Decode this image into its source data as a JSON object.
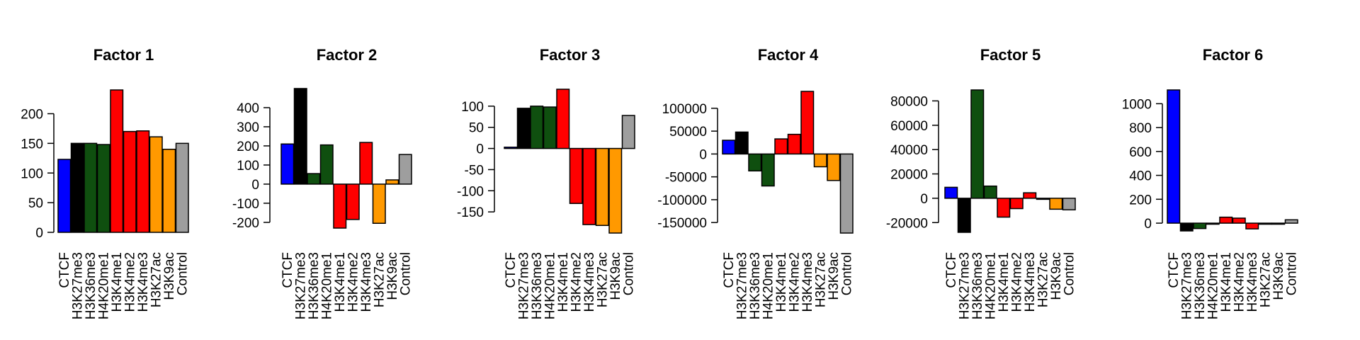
{
  "chart_data": [
    {
      "type": "bar",
      "title": "Factor 1",
      "categories": [
        "CTCF",
        "H3K27me3",
        "H3K36me3",
        "H4K20me1",
        "H3K4me1",
        "H3K4me2",
        "H3K4me3",
        "H3K27ac",
        "H3K9ac",
        "Control"
      ],
      "values": [
        123,
        150,
        150,
        148,
        240,
        170,
        171,
        161,
        140,
        150
      ],
      "ylim": [
        0,
        240
      ],
      "yticks": [
        0,
        50,
        100,
        150,
        200
      ],
      "ytick_labels": [
        "0",
        "50",
        "100",
        "150",
        "200"
      ]
    },
    {
      "type": "bar",
      "title": "Factor 2",
      "categories": [
        "CTCF",
        "H3K27me3",
        "H3K36me3",
        "H4K20me1",
        "H3K4me1",
        "H3K4me2",
        "H3K4me3",
        "H3K27ac",
        "H3K9ac",
        "Control"
      ],
      "values": [
        210,
        500,
        55,
        205,
        -230,
        -185,
        218,
        -205,
        22,
        155
      ],
      "ylim": [
        -230,
        500
      ],
      "yticks": [
        -200,
        -100,
        0,
        100,
        200,
        300,
        400
      ],
      "ytick_labels": [
        "-200",
        "-100",
        "0",
        "100",
        "200",
        "300",
        "400"
      ]
    },
    {
      "type": "bar",
      "title": "Factor 3",
      "categories": [
        "CTCF",
        "H3K27me3",
        "H3K36me3",
        "H4K20me1",
        "H3K4me1",
        "H3K4me2",
        "H3K4me3",
        "H3K27ac",
        "H3K9ac",
        "Control"
      ],
      "values": [
        3,
        95,
        100,
        98,
        140,
        -130,
        -180,
        -182,
        -200,
        78
      ],
      "ylim": [
        -200,
        140
      ],
      "yticks": [
        -150,
        -100,
        -50,
        0,
        50,
        100
      ],
      "ytick_labels": [
        "-150",
        "-100",
        "-50",
        "0",
        "50",
        "100"
      ]
    },
    {
      "type": "bar",
      "title": "Factor 4",
      "categories": [
        "CTCF",
        "H3K27me3",
        "H3K36me3",
        "H4K20me1",
        "H3K4me1",
        "H3K4me2",
        "H3K4me3",
        "H3K27ac",
        "H3K9ac",
        "Control"
      ],
      "values": [
        30000,
        48000,
        -37000,
        -70000,
        33000,
        43000,
        137000,
        -28000,
        -58000,
        -173000
      ],
      "ylim": [
        -173000,
        137000
      ],
      "yticks": [
        -150000,
        -100000,
        -50000,
        0,
        50000,
        100000
      ],
      "ytick_labels": [
        "-150000",
        "-100000",
        "-50000",
        "0",
        "50000",
        "100000"
      ]
    },
    {
      "type": "bar",
      "title": "Factor 5",
      "categories": [
        "CTCF",
        "H3K27me3",
        "H3K36me3",
        "H4K20me1",
        "H3K4me1",
        "H3K4me2",
        "H3K4me3",
        "H3K27ac",
        "H3K9ac",
        "Control"
      ],
      "values": [
        9000,
        -28000,
        89000,
        10000,
        -15500,
        -8500,
        4500,
        -400,
        -9000,
        -9500
      ],
      "ylim": [
        -28000,
        89000
      ],
      "yticks": [
        -20000,
        0,
        20000,
        40000,
        60000,
        80000
      ],
      "ytick_labels": [
        "-20000",
        "0",
        "20000",
        "40000",
        "60000",
        "80000"
      ]
    },
    {
      "type": "bar",
      "title": "Factor 6",
      "categories": [
        "CTCF",
        "H3K27me3",
        "H3K36me3",
        "H4K20me1",
        "H3K4me1",
        "H3K4me2",
        "H3K4me3",
        "H3K27ac",
        "H3K9ac",
        "Control"
      ],
      "values": [
        1115,
        -65,
        -45,
        -5,
        50,
        42,
        -48,
        -6,
        -4,
        28
      ],
      "ylim": [
        -65,
        1115
      ],
      "yticks": [
        0,
        200,
        400,
        600,
        800,
        1000
      ],
      "ytick_labels": [
        "0",
        "200",
        "400",
        "600",
        "800",
        "1000"
      ]
    }
  ],
  "colors": {
    "CTCF": "#0000ff",
    "H3K27me3": "#000000",
    "H3K36me3": "#0f4f0f",
    "H4K20me1": "#0f4f0f",
    "H3K4me1": "#ff0000",
    "H3K4me2": "#ff0000",
    "H3K4me3": "#ff0000",
    "H3K27ac": "#ff9900",
    "H3K9ac": "#ff9900",
    "Control": "#9e9e9e"
  }
}
